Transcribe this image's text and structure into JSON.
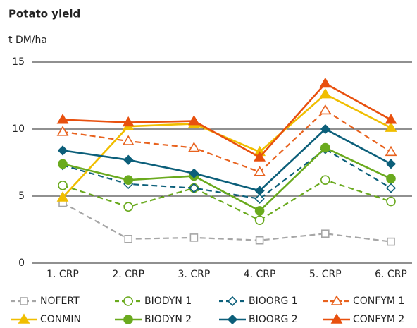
{
  "chart_data": {
    "type": "line",
    "title": "Potato yield",
    "y_label": "t DM/ha",
    "categories": [
      "1. CRP",
      "2. CRP",
      "3. CRP",
      "4. CRP",
      "5. CRP",
      "6. CRP"
    ],
    "ylim": [
      0,
      15
    ],
    "yticks": [
      0,
      5,
      10,
      15
    ],
    "grid": true,
    "series": [
      {
        "name": "NOFERT",
        "color": "#a6a6a6",
        "marker": "square",
        "filled": false,
        "dashed": true,
        "values": [
          4.5,
          1.8,
          1.9,
          1.7,
          2.2,
          1.6
        ]
      },
      {
        "name": "BIODYN 1",
        "color": "#6aaa1e",
        "marker": "circle",
        "filled": false,
        "dashed": true,
        "values": [
          5.8,
          4.2,
          5.6,
          3.2,
          6.2,
          4.6
        ]
      },
      {
        "name": "BIOORG 1",
        "color": "#0c5f7a",
        "marker": "diamond",
        "filled": false,
        "dashed": true,
        "values": [
          7.3,
          5.9,
          5.6,
          4.8,
          8.5,
          5.6
        ]
      },
      {
        "name": "CONFYM 1",
        "color": "#e8621e",
        "marker": "triangle",
        "filled": false,
        "dashed": true,
        "values": [
          9.8,
          9.1,
          8.6,
          6.8,
          11.4,
          8.3
        ]
      },
      {
        "name": "CONMIN",
        "color": "#f0be00",
        "marker": "triangle",
        "filled": true,
        "dashed": false,
        "values": [
          4.9,
          10.2,
          10.4,
          8.3,
          12.6,
          10.1
        ]
      },
      {
        "name": "BIODYN 2",
        "color": "#6aaa1e",
        "marker": "circle",
        "filled": true,
        "dashed": false,
        "values": [
          7.4,
          6.2,
          6.5,
          3.9,
          8.6,
          6.3
        ]
      },
      {
        "name": "BIOORG 2",
        "color": "#0c5f7a",
        "marker": "diamond",
        "filled": true,
        "dashed": false,
        "values": [
          8.4,
          7.7,
          6.7,
          5.4,
          10.0,
          7.4
        ]
      },
      {
        "name": "CONFYM 2",
        "color": "#e8500e",
        "marker": "triangle",
        "filled": true,
        "dashed": false,
        "values": [
          10.7,
          10.5,
          10.6,
          7.9,
          13.4,
          10.7
        ]
      }
    ]
  }
}
